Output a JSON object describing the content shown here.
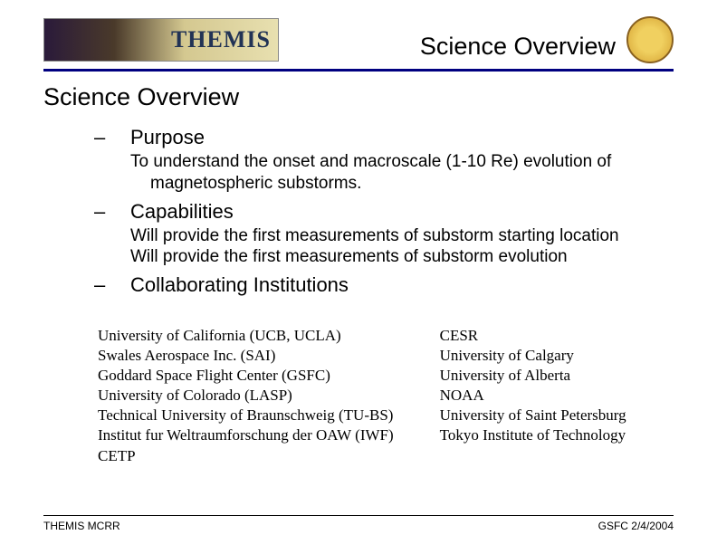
{
  "header": {
    "logo_text": "THEMIS",
    "title": "Science Overview"
  },
  "main_title": "Science Overview",
  "sections": [
    {
      "label": "Purpose",
      "body": [
        "To understand the onset and macroscale (1-10 Re) evolution of magnetospheric substorms."
      ]
    },
    {
      "label": "Capabilities",
      "body": [
        "Will provide the first measurements of substorm starting location",
        "Will provide the first measurements of substorm evolution"
      ]
    },
    {
      "label": "Collaborating Institutions",
      "body": []
    }
  ],
  "institutions": {
    "left": [
      "University of California (UCB, UCLA)",
      "Swales Aerospace Inc. (SAI)",
      "Goddard Space Flight Center (GSFC)",
      "University of Colorado (LASP)",
      "Technical University of Braunschweig (TU-BS)",
      "Institut fur Weltraumforschung der OAW (IWF)",
      "CETP"
    ],
    "right": [
      "CESR",
      "University of Calgary",
      "University of Alberta",
      "NOAA",
      "University of Saint Petersburg",
      "Tokyo Institute of Technology"
    ]
  },
  "footer": {
    "left": "THEMIS MCRR",
    "right": "GSFC 2/4/2004"
  },
  "colors": {
    "rule": "#000080",
    "text": "#000000",
    "background": "#ffffff"
  }
}
